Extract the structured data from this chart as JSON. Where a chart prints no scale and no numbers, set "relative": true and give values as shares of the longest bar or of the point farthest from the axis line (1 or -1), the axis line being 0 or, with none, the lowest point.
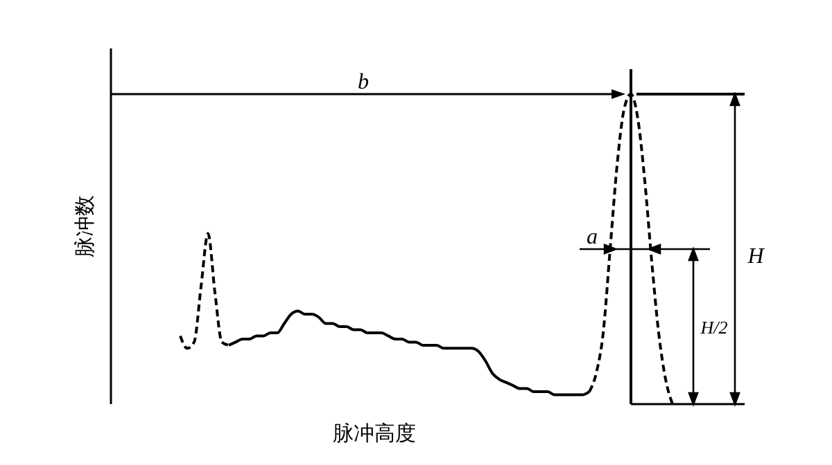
{
  "chart_data": {
    "type": "line",
    "relative": true,
    "xlabel": "脉冲高度",
    "ylabel": "脉冲数",
    "marker": "none",
    "categories": [
      null,
      null,
      null,
      null,
      null,
      null,
      null,
      null,
      null,
      null,
      null,
      null,
      null,
      null,
      null,
      null,
      null,
      null,
      null,
      null,
      null,
      null,
      null,
      null,
      null,
      null,
      null,
      null,
      null,
      null,
      null,
      null,
      null,
      null,
      null,
      null,
      null,
      null,
      null,
      null,
      null,
      null,
      null,
      null,
      null,
      null,
      null,
      null,
      null,
      null,
      null,
      null,
      null,
      null,
      null,
      null,
      null,
      null,
      null,
      null,
      null,
      null,
      null,
      null,
      null,
      null,
      null,
      null,
      null,
      null,
      null,
      null
    ],
    "series": [
      {
        "color": "#000000",
        "line_style": "dashed",
        "values": [
          0.22,
          0.18,
          0.2,
          0.38,
          0.55,
          0.36,
          0.2,
          0.19,
          null,
          null,
          null,
          null,
          null,
          null,
          null,
          null,
          null,
          null,
          null,
          null,
          null,
          null,
          null,
          null,
          null,
          null,
          null,
          null,
          null,
          null,
          null,
          null,
          null,
          null,
          null,
          null,
          null,
          null,
          null,
          null,
          null,
          null,
          null,
          null,
          null,
          null,
          null,
          null,
          null,
          null,
          null,
          null,
          null,
          null,
          null,
          null,
          null,
          null,
          null,
          null,
          null,
          null,
          null,
          null,
          null,
          null,
          null,
          null,
          null,
          null,
          null,
          null
        ]
      },
      {
        "color": "#000000",
        "line_style": "solid",
        "values": [
          null,
          null,
          null,
          null,
          null,
          null,
          null,
          0.19,
          0.2,
          0.21,
          0.21,
          0.22,
          0.22,
          0.23,
          0.23,
          0.26,
          0.29,
          0.3,
          0.29,
          0.29,
          0.28,
          0.26,
          0.26,
          0.25,
          0.25,
          0.24,
          0.24,
          0.23,
          0.23,
          0.23,
          0.22,
          0.21,
          0.21,
          0.2,
          0.2,
          0.19,
          0.19,
          0.19,
          0.18,
          0.18,
          0.18,
          0.18,
          0.18,
          0.17,
          0.14,
          0.1,
          0.08,
          0.07,
          0.06,
          0.05,
          0.05,
          0.04,
          0.04,
          0.04,
          0.03,
          0.03,
          0.03,
          0.03,
          0.03,
          0.04,
          null,
          null,
          null,
          null,
          null,
          null,
          null,
          null,
          null,
          null,
          null,
          null
        ]
      },
      {
        "color": "#000000",
        "line_style": "dashed",
        "values": [
          null,
          null,
          null,
          null,
          null,
          null,
          null,
          null,
          null,
          null,
          null,
          null,
          null,
          null,
          null,
          null,
          null,
          null,
          null,
          null,
          null,
          null,
          null,
          null,
          null,
          null,
          null,
          null,
          null,
          null,
          null,
          null,
          null,
          null,
          null,
          null,
          null,
          null,
          null,
          null,
          null,
          null,
          null,
          null,
          null,
          null,
          null,
          null,
          null,
          null,
          null,
          null,
          null,
          null,
          null,
          null,
          null,
          null,
          null,
          0.04,
          0.1,
          0.23,
          0.5,
          0.77,
          0.95,
          1,
          0.92,
          0.72,
          0.46,
          0.23,
          0.08,
          0
        ]
      }
    ],
    "annotations": [
      "b",
      "a",
      "H",
      "H/2"
    ]
  }
}
